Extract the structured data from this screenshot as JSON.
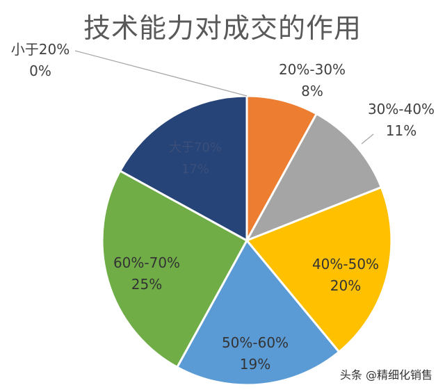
{
  "chart_data": {
    "type": "pie",
    "title": "技术能力对成交的作用",
    "categories": [
      "小于20%",
      "20%-30%",
      "30%-40%",
      "40%-50%",
      "50%-60%",
      "60%-70%",
      "大于70%"
    ],
    "values": [
      0,
      8,
      11,
      20,
      19,
      25,
      17
    ],
    "percent_labels": [
      "0%",
      "8%",
      "11%",
      "20%",
      "19%",
      "25%",
      "17%"
    ],
    "colors": [
      "#a5a5a5",
      "#ed7d31",
      "#a5a5a5",
      "#ffc000",
      "#5b9bd5",
      "#70ad47",
      "#264478"
    ],
    "start": "12 o'clock",
    "direction": "clockwise",
    "legend": "none",
    "data_labels": "category and percent"
  },
  "watermark": "头条 @精细化销售"
}
